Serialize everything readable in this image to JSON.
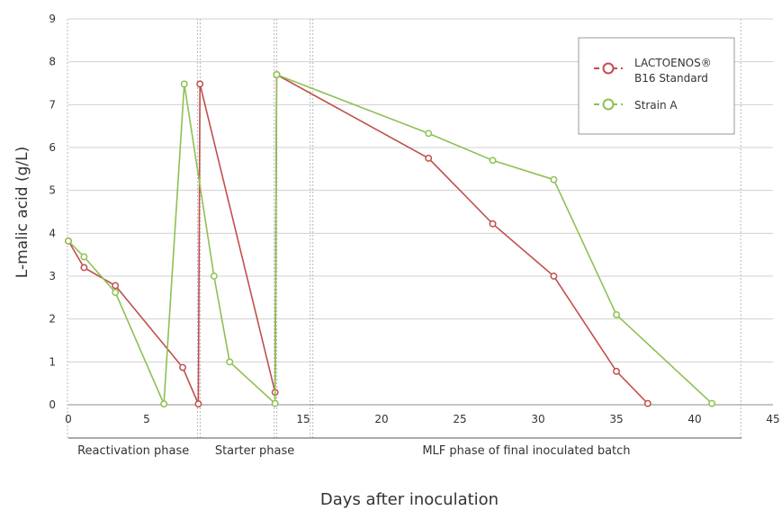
{
  "chart_data": {
    "type": "line",
    "xlabel": "Days after inoculation",
    "ylabel": "L-malic acid  (g/L)",
    "xlim": [
      0,
      45
    ],
    "ylim": [
      0,
      9
    ],
    "x_ticks": [
      0,
      5,
      15,
      20,
      25,
      30,
      35,
      40,
      45
    ],
    "y_ticks": [
      0,
      1,
      2,
      3,
      4,
      5,
      6,
      7,
      8,
      9
    ],
    "grid": "horizontal",
    "phase_separators": [
      0,
      8.3,
      13.2,
      15.5,
      43
    ],
    "phases": [
      {
        "label": "Reactivation phase",
        "start": 0,
        "end": 8.3
      },
      {
        "label": "Starter phase",
        "start": 8.3,
        "end": 15.5
      },
      {
        "label": "MLF phase of final inoculated batch",
        "start": 15.5,
        "end": 43
      }
    ],
    "legend": {
      "placement": "top-right",
      "entries": [
        {
          "line1": "LACTOENOS®",
          "line2": "B16 Standard",
          "color": "#c0504d"
        },
        {
          "line1": "Strain A",
          "line2": "",
          "color": "#8dc153"
        }
      ]
    },
    "series": [
      {
        "name": "LACTOENOS® B16 Standard",
        "color": "#c0504d",
        "points": [
          [
            0,
            3.82
          ],
          [
            1,
            3.2
          ],
          [
            3,
            2.78
          ],
          [
            7.3,
            0.87
          ],
          [
            8.3,
            0.02
          ],
          [
            8.4,
            7.48
          ],
          [
            13.2,
            0.29
          ],
          [
            13.3,
            7.7
          ],
          [
            23,
            5.75
          ],
          [
            27.1,
            4.22
          ],
          [
            31,
            3.0
          ],
          [
            35,
            0.78
          ],
          [
            37,
            0.03
          ]
        ]
      },
      {
        "name": "Strain A",
        "color": "#8dc153",
        "points": [
          [
            0,
            3.82
          ],
          [
            1,
            3.45
          ],
          [
            3,
            2.62
          ],
          [
            6.1,
            0.02
          ],
          [
            7.4,
            7.48
          ],
          [
            9.3,
            3.0
          ],
          [
            10.3,
            1.0
          ],
          [
            13.2,
            0.03
          ],
          [
            13.3,
            7.7
          ],
          [
            23,
            6.33
          ],
          [
            27.1,
            5.7
          ],
          [
            31,
            5.25
          ],
          [
            35,
            2.1
          ],
          [
            41.1,
            0.03
          ]
        ]
      }
    ]
  }
}
